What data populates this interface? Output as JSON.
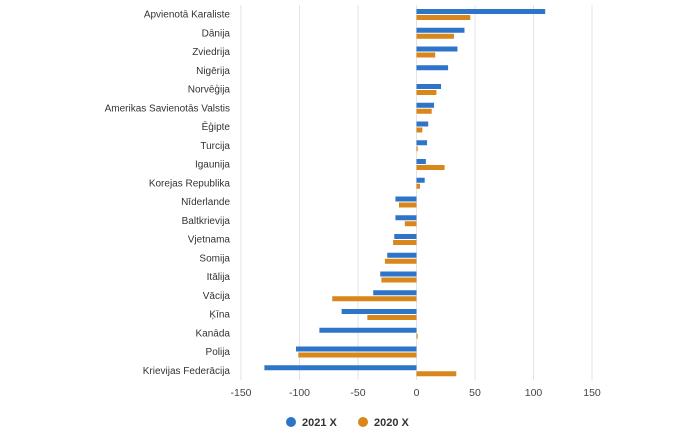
{
  "chart_data": {
    "type": "bar",
    "orientation": "horizontal",
    "title": "",
    "xlabel": "",
    "ylabel": "",
    "xlim": [
      -150,
      150
    ],
    "xticks": [
      -150,
      -100,
      -50,
      0,
      50,
      100,
      150
    ],
    "grid": true,
    "legend_position": "bottom",
    "categories": [
      "Apvienotā Karaliste",
      "Dānija",
      "Zviedrija",
      "Nigērija",
      "Norvēģija",
      "Amerikas Savienotās Valstis",
      "Ēģipte",
      "Turcija",
      "Igaunija",
      "Korejas Republika",
      "Nīderlande",
      "Baltkrievija",
      "Vjetnama",
      "Somija",
      "Itālija",
      "Vācija",
      "Ķīna",
      "Kanāda",
      "Polija",
      "Krievijas Federācija"
    ],
    "series": [
      {
        "name": "2021 X",
        "color": "#2e75c9",
        "values": [
          110,
          41,
          35,
          27,
          21,
          15,
          10,
          9,
          8,
          7,
          -18,
          -18,
          -19,
          -25,
          -31,
          -37,
          -64,
          -83,
          -103,
          -130
        ]
      },
      {
        "name": "2020 X",
        "color": "#d9861a",
        "values": [
          46,
          32,
          16,
          0,
          17,
          13,
          5,
          1,
          24,
          3,
          -15,
          -10,
          -20,
          -27,
          -30,
          -72,
          -42,
          1,
          -101,
          34
        ]
      }
    ]
  }
}
